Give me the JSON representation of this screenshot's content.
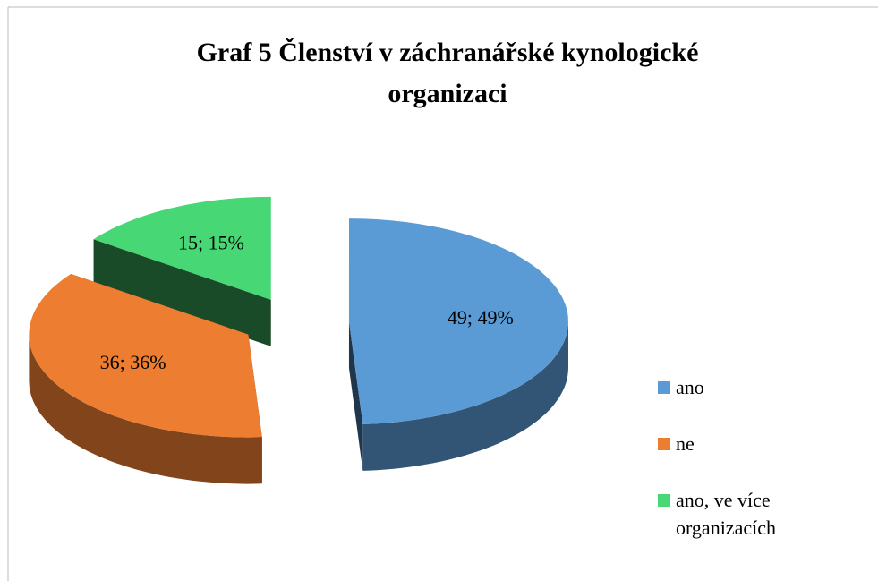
{
  "chart_data": {
    "type": "pie",
    "title": "Graf 5 Členství v záchranářské kynologické organizaci",
    "categories": [
      "ano",
      "ne",
      "ano, ve více organizacích"
    ],
    "values": [
      49,
      36,
      15
    ],
    "value_labels": [
      "49; 49%",
      "36; 36%",
      "15; 15%"
    ],
    "colors": [
      "#5b9bd5",
      "#ed7d31",
      "#47d774"
    ],
    "legend": "right"
  }
}
